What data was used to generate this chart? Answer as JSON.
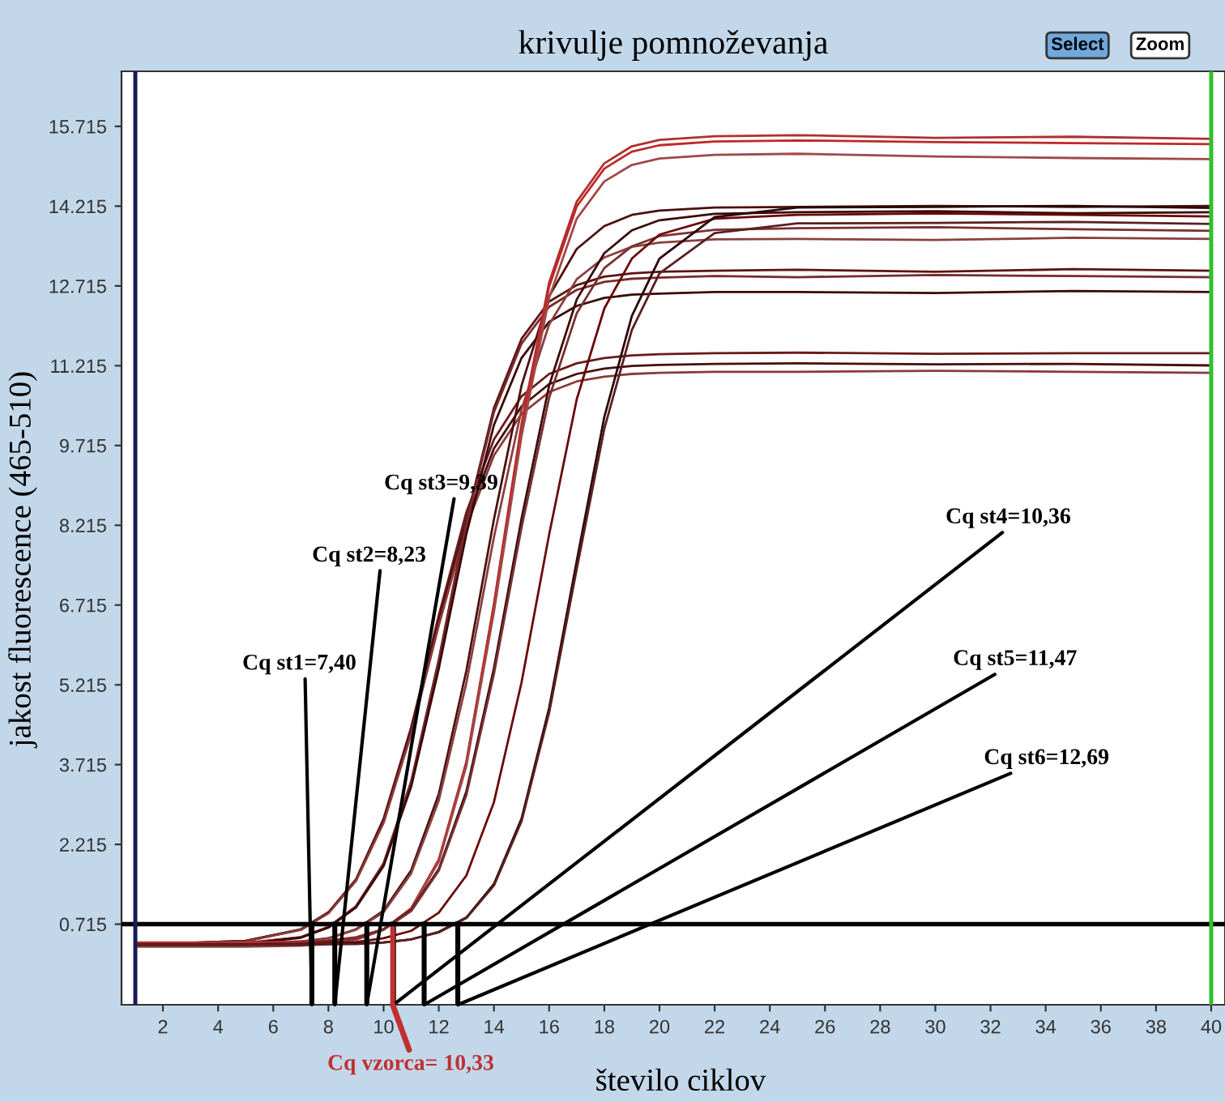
{
  "chart_data": {
    "type": "line",
    "title": "krivulje pomnoževanja",
    "xlabel": "število ciklov",
    "ylabel": "jakost fluorescence (465-510)",
    "x": [
      1,
      5,
      7,
      8,
      9,
      10,
      11,
      12,
      13,
      14,
      15,
      16,
      17,
      18,
      19,
      20,
      22,
      25,
      30,
      35,
      40
    ],
    "series": [
      {
        "color": "#6a1a1a",
        "values": [
          0.33,
          0.4,
          0.62,
          0.94,
          1.56,
          2.7,
          4.42,
          6.52,
          8.46,
          9.83,
          10.64,
          11.06,
          11.26,
          11.36,
          11.41,
          11.43,
          11.45,
          11.46,
          11.44,
          11.45,
          11.45
        ]
      },
      {
        "color": "#4a0c0c",
        "values": [
          0.33,
          0.4,
          0.61,
          0.93,
          1.54,
          2.66,
          4.35,
          6.41,
          8.31,
          9.66,
          10.45,
          10.87,
          11.06,
          11.16,
          11.21,
          11.23,
          11.25,
          11.26,
          11.24,
          11.25,
          11.22
        ]
      },
      {
        "color": "#8a3a3a",
        "values": [
          0.33,
          0.39,
          0.61,
          0.92,
          1.53,
          2.62,
          4.29,
          6.33,
          8.2,
          9.53,
          10.31,
          10.72,
          10.92,
          11.01,
          11.06,
          11.08,
          11.1,
          11.1,
          11.12,
          11.1,
          11.08
        ]
      },
      {
        "color": "#5a1414",
        "values": [
          0.33,
          0.36,
          0.47,
          0.66,
          1.05,
          1.86,
          3.4,
          5.69,
          8.3,
          10.42,
          11.72,
          12.42,
          12.73,
          12.89,
          12.95,
          12.98,
          13.0,
          13.02,
          12.98,
          13.03,
          13.0
        ]
      },
      {
        "color": "#7a2a2a",
        "values": [
          0.33,
          0.36,
          0.47,
          0.66,
          1.05,
          1.85,
          3.37,
          5.65,
          8.24,
          10.34,
          11.63,
          12.32,
          12.64,
          12.79,
          12.85,
          12.87,
          12.9,
          12.88,
          12.92,
          12.9,
          12.88
        ]
      },
      {
        "color": "#3a0808",
        "values": [
          0.33,
          0.35,
          0.46,
          0.65,
          1.03,
          1.81,
          3.3,
          5.52,
          8.05,
          10.1,
          11.36,
          12.04,
          12.34,
          12.49,
          12.55,
          12.57,
          12.6,
          12.6,
          12.58,
          12.62,
          12.6
        ]
      },
      {
        "color": "#4a1010",
        "values": [
          0.33,
          0.34,
          0.39,
          0.45,
          0.62,
          0.97,
          1.73,
          3.16,
          5.48,
          8.33,
          10.84,
          12.52,
          13.41,
          13.84,
          14.05,
          14.13,
          14.19,
          14.2,
          14.22,
          14.2,
          14.22
        ]
      },
      {
        "color": "#8a4040",
        "values": [
          0.33,
          0.34,
          0.38,
          0.45,
          0.61,
          0.94,
          1.67,
          3.04,
          5.25,
          7.99,
          10.39,
          11.99,
          12.84,
          13.25,
          13.45,
          13.53,
          13.59,
          13.6,
          13.58,
          13.62,
          13.6
        ]
      },
      {
        "color": "#b03030",
        "values": [
          0.37,
          0.37,
          0.39,
          0.41,
          0.47,
          0.62,
          1.01,
          1.93,
          3.77,
          6.74,
          10.12,
          12.78,
          14.3,
          15.02,
          15.34,
          15.46,
          15.53,
          15.55,
          15.5,
          15.52,
          15.48
        ]
      },
      {
        "color": "#c02828",
        "values": [
          0.33,
          0.33,
          0.35,
          0.38,
          0.45,
          0.62,
          1.01,
          1.92,
          3.75,
          6.7,
          10.05,
          12.7,
          14.21,
          14.92,
          15.24,
          15.36,
          15.43,
          15.45,
          15.42,
          15.4,
          15.38
        ]
      },
      {
        "color": "#a04848",
        "values": [
          0.29,
          0.29,
          0.31,
          0.34,
          0.42,
          0.61,
          1.0,
          1.89,
          3.69,
          6.59,
          9.89,
          12.49,
          13.98,
          14.68,
          14.99,
          15.11,
          15.18,
          15.2,
          15.15,
          15.12,
          15.1
        ]
      },
      {
        "color": "#3a0a0a",
        "values": [
          0.33,
          0.33,
          0.36,
          0.39,
          0.45,
          0.62,
          0.98,
          1.75,
          3.21,
          5.53,
          8.34,
          10.84,
          12.46,
          13.33,
          13.76,
          13.95,
          14.07,
          14.1,
          14.12,
          14.08,
          14.1
        ]
      },
      {
        "color": "#7a3030",
        "values": [
          0.33,
          0.33,
          0.36,
          0.38,
          0.45,
          0.61,
          0.96,
          1.72,
          3.14,
          5.42,
          8.17,
          10.61,
          12.2,
          13.05,
          13.46,
          13.65,
          13.77,
          13.8,
          13.82,
          13.78,
          13.75
        ]
      },
      {
        "color": "#6a0808",
        "values": [
          0.33,
          0.33,
          0.34,
          0.36,
          0.38,
          0.45,
          0.59,
          0.93,
          1.63,
          3.01,
          5.26,
          8.04,
          10.58,
          12.29,
          13.23,
          13.68,
          13.98,
          14.05,
          14.08,
          14.05,
          14.02
        ]
      },
      {
        "color": "#2a0606",
        "values": [
          0.33,
          0.33,
          0.33,
          0.34,
          0.35,
          0.37,
          0.43,
          0.57,
          0.84,
          1.47,
          2.7,
          4.78,
          7.54,
          10.25,
          12.15,
          13.23,
          14.01,
          14.19,
          14.2,
          14.22,
          14.18
        ]
      },
      {
        "color": "#5a2020",
        "values": [
          0.33,
          0.33,
          0.33,
          0.34,
          0.34,
          0.37,
          0.43,
          0.56,
          0.83,
          1.44,
          2.65,
          4.69,
          7.39,
          10.03,
          11.89,
          12.95,
          13.71,
          13.89,
          13.9,
          13.92,
          13.88
        ]
      },
      {
        "color": "#000000",
        "x": [
          7.4,
          7.4
        ],
        "values": [
          -0.8,
          0.715
        ]
      },
      {
        "color": "#000000",
        "x": [
          8.23,
          8.23
        ],
        "values": [
          -0.8,
          0.715
        ]
      },
      {
        "color": "#000000",
        "x": [
          9.39,
          9.39
        ],
        "values": [
          -0.8,
          0.715
        ]
      },
      {
        "color": "#000000",
        "x": [
          10.36,
          10.36
        ],
        "values": [
          -0.8,
          0.715
        ]
      },
      {
        "color": "#000000",
        "x": [
          11.47,
          11.47
        ],
        "values": [
          -0.8,
          0.715
        ]
      },
      {
        "color": "#000000",
        "x": [
          12.69,
          12.69
        ],
        "values": [
          -0.8,
          0.715
        ]
      },
      {
        "color": "#c03030",
        "x": [
          10.33,
          10.33
        ],
        "values": [
          -0.8,
          0.715
        ]
      }
    ],
    "xlim": [
      0.5,
      40.5
    ],
    "xticks": [
      2,
      4,
      6,
      8,
      10,
      12,
      14,
      16,
      18,
      20,
      22,
      24,
      26,
      28,
      30,
      32,
      34,
      36,
      38,
      40
    ],
    "ylim": [
      -0.8,
      16.75
    ],
    "yticks": [
      0.715,
      2.215,
      3.715,
      5.215,
      6.715,
      8.215,
      9.715,
      11.215,
      12.715,
      14.215,
      15.715
    ],
    "grid": false,
    "marker": "none",
    "line_style": "solid",
    "ref_lines": [
      {
        "axis": "y",
        "value": 0.715,
        "color": "#000000"
      },
      {
        "axis": "x",
        "value": 1,
        "color": "#1a1a5a"
      },
      {
        "axis": "x",
        "value": 40,
        "color": "#30c030"
      }
    ],
    "annotations": [
      {
        "text": "Cq st1=7,40",
        "x": 7.4,
        "y": -0.8
      },
      {
        "text": "Cq st2=8,23",
        "x": 8.23,
        "y": -0.8
      },
      {
        "text": "Cq st3=9,39",
        "x": 9.39,
        "y": -0.8
      },
      {
        "text": "Cq st4=10,36",
        "x": 10.36,
        "y": -0.8
      },
      {
        "text": "Cq st5=11,47",
        "x": 11.47,
        "y": -0.8
      },
      {
        "text": "Cq st6=12,69",
        "x": 12.69,
        "y": -0.8
      },
      {
        "text": "Cq vzorca= 10,33",
        "x": 10.33,
        "y": -0.8
      },
      "Select",
      "Zoom"
    ]
  }
}
